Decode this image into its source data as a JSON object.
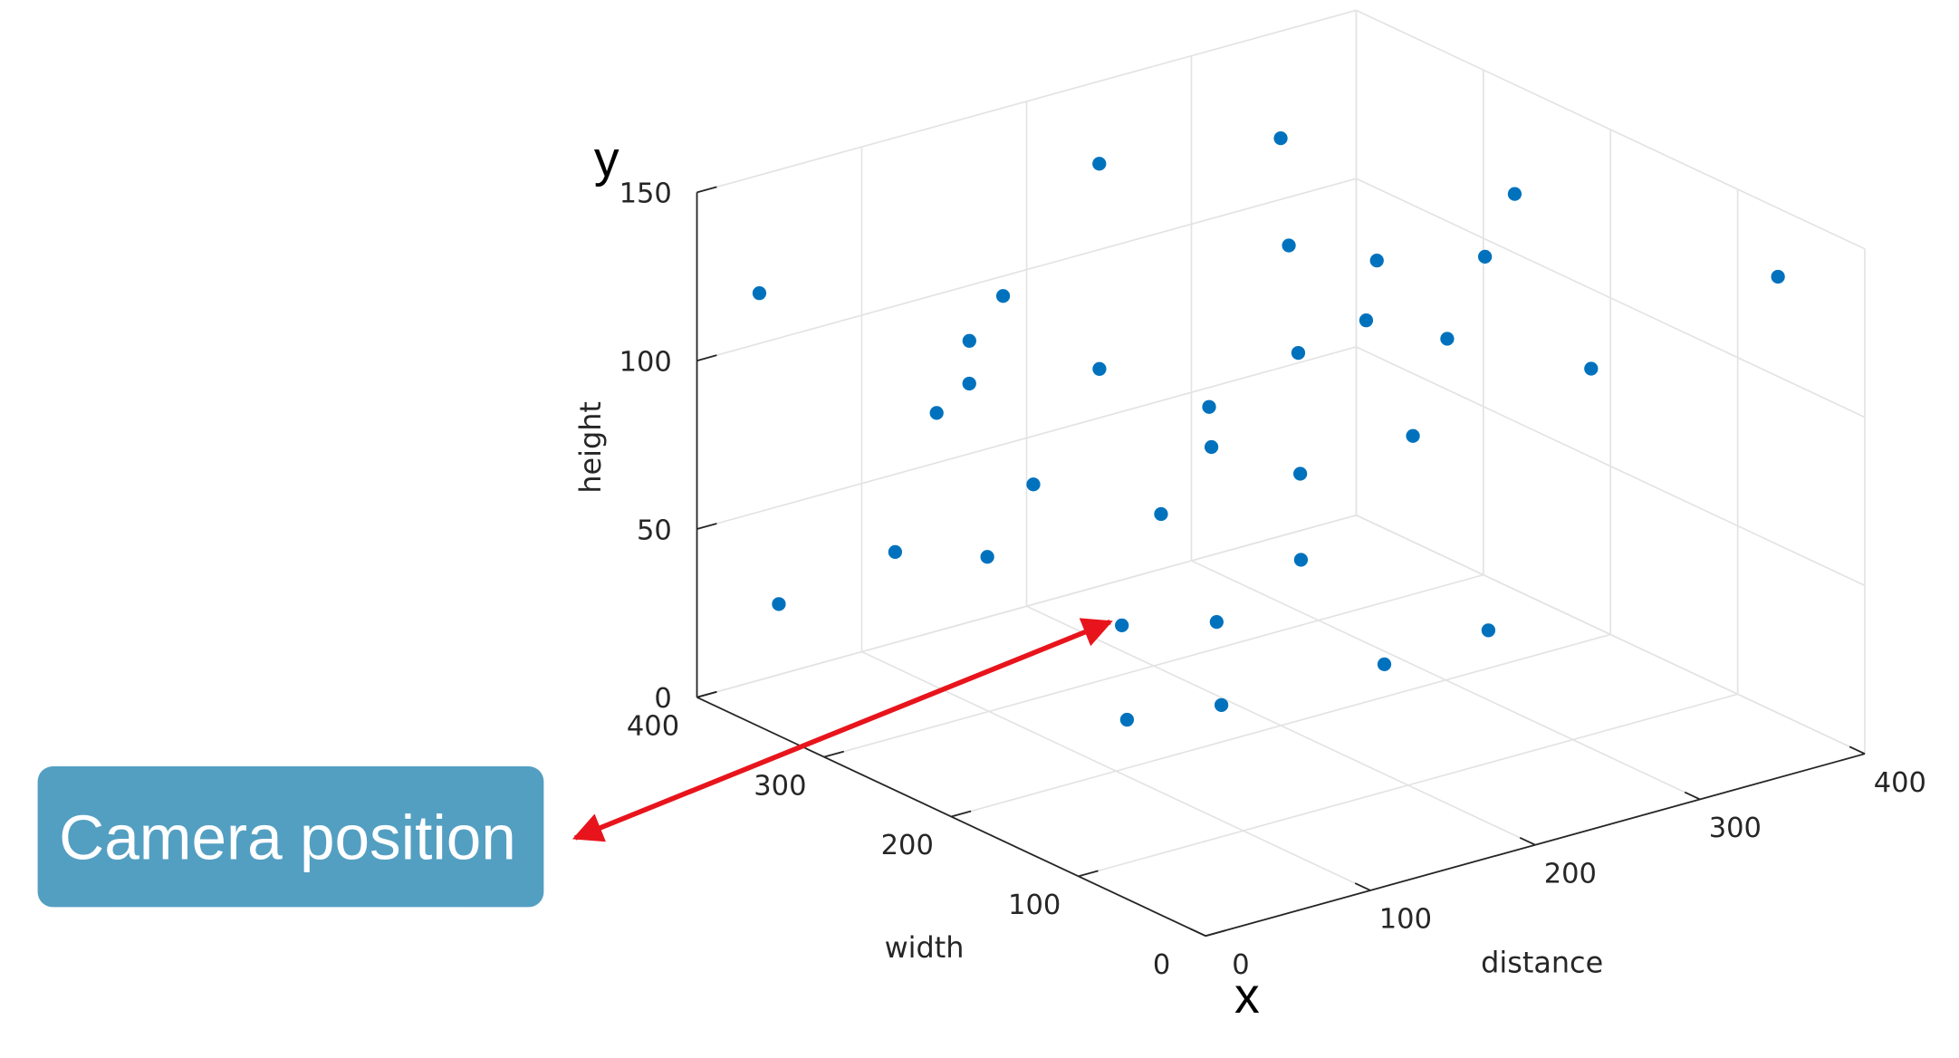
{
  "chart_data": {
    "type": "scatter3d",
    "xlabel": "distance",
    "ylabel": "width",
    "zlabel": "height",
    "xlim": [
      0,
      400
    ],
    "ylim": [
      0,
      400
    ],
    "zlim": [
      0,
      150
    ],
    "xticks": [
      0,
      100,
      200,
      300,
      400
    ],
    "yticks": [
      0,
      100,
      200,
      300,
      400
    ],
    "zticks": [
      0,
      50,
      100,
      150
    ],
    "grid": true,
    "series": [
      {
        "color": "#0072bd",
        "x": [
          24,
          25,
          57,
          49,
          38,
          58,
          143,
          60,
          110,
          177,
          147,
          166,
          146,
          162,
          158,
          181,
          205,
          194,
          267,
          265,
          236,
          248,
          233,
          261,
          259,
          262,
          267,
          277,
          276,
          302,
          311,
          335,
          399
        ],
        "y": [
          382,
          368,
          318,
          275,
          235,
          261,
          357,
          237,
          278,
          313,
          274,
          281,
          251,
          245,
          202,
          230,
          257,
          239,
          287,
          278,
          233,
          247,
          227,
          212,
          201,
          199,
          183,
          169,
          138,
          169,
          160,
          131,
          67
        ],
        "z": [
          120,
          30,
          50,
          100,
          130,
          110,
          30,
          140,
          70,
          150,
          100,
          20,
          0,
          60,
          100,
          80,
          20,
          0,
          150,
          120,
          100,
          60,
          40,
          110,
          130,
          10,
          80,
          110,
          140,
          20,
          150,
          100,
          130
        ]
      }
    ],
    "annotations": [
      {
        "text": "y"
      },
      {
        "text": "x"
      },
      {
        "text": "Camera position"
      }
    ]
  }
}
